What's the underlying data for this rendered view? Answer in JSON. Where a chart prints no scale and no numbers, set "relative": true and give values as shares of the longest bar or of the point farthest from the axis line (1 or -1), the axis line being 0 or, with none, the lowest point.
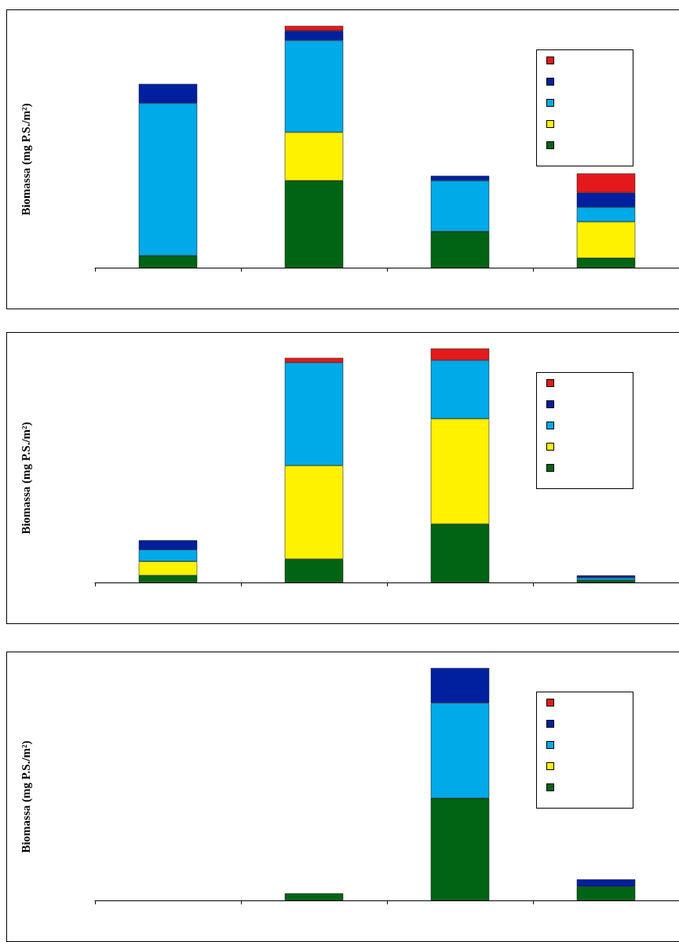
{
  "chart_data": [
    {
      "type": "bar",
      "stacked": true,
      "relative": true,
      "ylabel": "Biomassa (mg P.S./m²)",
      "categories": [
        null,
        null,
        null,
        null
      ],
      "series": [
        {
          "color": "#006414",
          "values": [
            0.05,
            0.36,
            0.15,
            0.04
          ]
        },
        {
          "color": "#fff200",
          "values": [
            null,
            0.2,
            null,
            0.15
          ]
        },
        {
          "color": "#00aae8",
          "values": [
            0.63,
            0.38,
            0.21,
            0.06
          ]
        },
        {
          "color": "#00209f",
          "values": [
            0.08,
            0.04,
            0.02,
            0.06
          ]
        },
        {
          "color": "#e31a1c",
          "values": [
            null,
            0.02,
            null,
            0.08
          ]
        }
      ]
    },
    {
      "type": "bar",
      "stacked": true,
      "relative": true,
      "ylabel": "Biomassa (mg P.S./m²)",
      "categories": [
        null,
        null,
        null,
        null
      ],
      "series": [
        {
          "color": "#006414",
          "values": [
            0.03,
            0.1,
            0.25,
            0.01
          ]
        },
        {
          "color": "#fff200",
          "values": [
            0.06,
            0.4,
            0.45,
            null
          ]
        },
        {
          "color": "#00aae8",
          "values": [
            0.05,
            0.44,
            0.25,
            0.01
          ]
        },
        {
          "color": "#00209f",
          "values": [
            0.04,
            null,
            null,
            0.01
          ]
        },
        {
          "color": "#e31a1c",
          "values": [
            null,
            0.02,
            0.05,
            null
          ]
        }
      ]
    },
    {
      "type": "bar",
      "stacked": true,
      "relative": true,
      "ylabel": "Biomassa (mg P.S./m²)",
      "categories": [
        null,
        null,
        null,
        null
      ],
      "series": [
        {
          "color": "#006414",
          "values": [
            null,
            0.03,
            0.44,
            0.06
          ]
        },
        {
          "color": "#fff200",
          "values": [
            null,
            null,
            null,
            null
          ]
        },
        {
          "color": "#00aae8",
          "values": [
            null,
            null,
            0.41,
            null
          ]
        },
        {
          "color": "#00209f",
          "values": [
            null,
            null,
            0.15,
            0.03
          ]
        },
        {
          "color": "#e31a1c",
          "values": [
            null,
            null,
            null,
            null
          ]
        }
      ]
    }
  ]
}
